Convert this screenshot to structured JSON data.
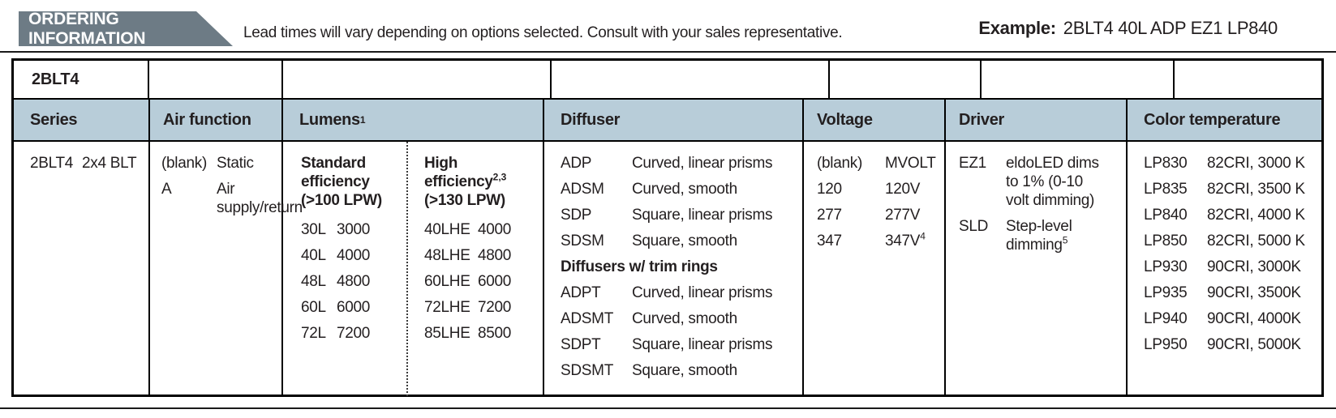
{
  "banner": {
    "title": "ORDERING INFORMATION",
    "note": "Lead times will vary depending on options selected. Consult with your sales representative.",
    "example_label": "Example:",
    "example_value": "2BLT4 40L ADP EZ1 LP840"
  },
  "colors": {
    "banner_bg": "#6d7b85",
    "header_row_bg": "#b8cdd9",
    "text": "#231f20",
    "border": "#000000"
  },
  "table": {
    "product": "2BLT4",
    "columns": {
      "series": {
        "header": "Series",
        "items": [
          {
            "code": "2BLT4",
            "desc": "2x4 BLT"
          }
        ]
      },
      "air": {
        "header": "Air function",
        "items": [
          {
            "code": "(blank)",
            "desc": "Static"
          },
          {
            "code": "A",
            "desc": "Air supply/return"
          }
        ]
      },
      "lumens": {
        "header": "Lumens",
        "header_sup": "1",
        "standard": {
          "title": "Standard efficiency",
          "range": "(>100 LPW)",
          "items": [
            {
              "code": "30L",
              "desc": "3000"
            },
            {
              "code": "40L",
              "desc": "4000"
            },
            {
              "code": "48L",
              "desc": "4800"
            },
            {
              "code": "60L",
              "desc": "6000"
            },
            {
              "code": "72L",
              "desc": "7200"
            }
          ]
        },
        "high": {
          "title": "High efficiency",
          "title_sup": "2,3",
          "range": "(>130 LPW)",
          "items": [
            {
              "code": "40LHE",
              "desc": "4000"
            },
            {
              "code": "48LHE",
              "desc": "4800"
            },
            {
              "code": "60LHE",
              "desc": "6000"
            },
            {
              "code": "72LHE",
              "desc": "7200"
            },
            {
              "code": "85LHE",
              "desc": "8500"
            }
          ]
        }
      },
      "diffuser": {
        "header": "Diffuser",
        "items": [
          {
            "code": "ADP",
            "desc": "Curved, linear prisms"
          },
          {
            "code": "ADSM",
            "desc": "Curved, smooth"
          },
          {
            "code": "SDP",
            "desc": "Square, linear prisms"
          },
          {
            "code": "SDSM",
            "desc": "Square, smooth"
          }
        ],
        "trim_title": "Diffusers w/ trim rings",
        "trim_items": [
          {
            "code": "ADPT",
            "desc": "Curved, linear prisms"
          },
          {
            "code": "ADSMT",
            "desc": "Curved, smooth"
          },
          {
            "code": "SDPT",
            "desc": "Square, linear prisms"
          },
          {
            "code": "SDSMT",
            "desc": "Square, smooth"
          }
        ]
      },
      "voltage": {
        "header": "Voltage",
        "items": [
          {
            "code": "(blank)",
            "desc": "MVOLT"
          },
          {
            "code": "120",
            "desc": "120V"
          },
          {
            "code": "277",
            "desc": "277V"
          },
          {
            "code": "347",
            "desc": "347V",
            "desc_sup": "4"
          }
        ]
      },
      "driver": {
        "header": "Driver",
        "items": [
          {
            "code": "EZ1",
            "desc": "eldoLED dims to 1% (0-10 volt dimming)"
          },
          {
            "code": "SLD",
            "desc": "Step-level dimming",
            "desc_sup": "5"
          }
        ]
      },
      "color_temp": {
        "header": "Color temperature",
        "items": [
          {
            "code": "LP830",
            "desc": "82CRI, 3000 K"
          },
          {
            "code": "LP835",
            "desc": "82CRI, 3500 K"
          },
          {
            "code": "LP840",
            "desc": "82CRI, 4000 K"
          },
          {
            "code": "LP850",
            "desc": "82CRI, 5000 K"
          },
          {
            "code": "LP930",
            "desc": "90CRI, 3000K"
          },
          {
            "code": "LP935",
            "desc": "90CRI, 3500K"
          },
          {
            "code": "LP940",
            "desc": "90CRI, 4000K"
          },
          {
            "code": "LP950",
            "desc": "90CRI, 5000K"
          }
        ]
      }
    }
  }
}
